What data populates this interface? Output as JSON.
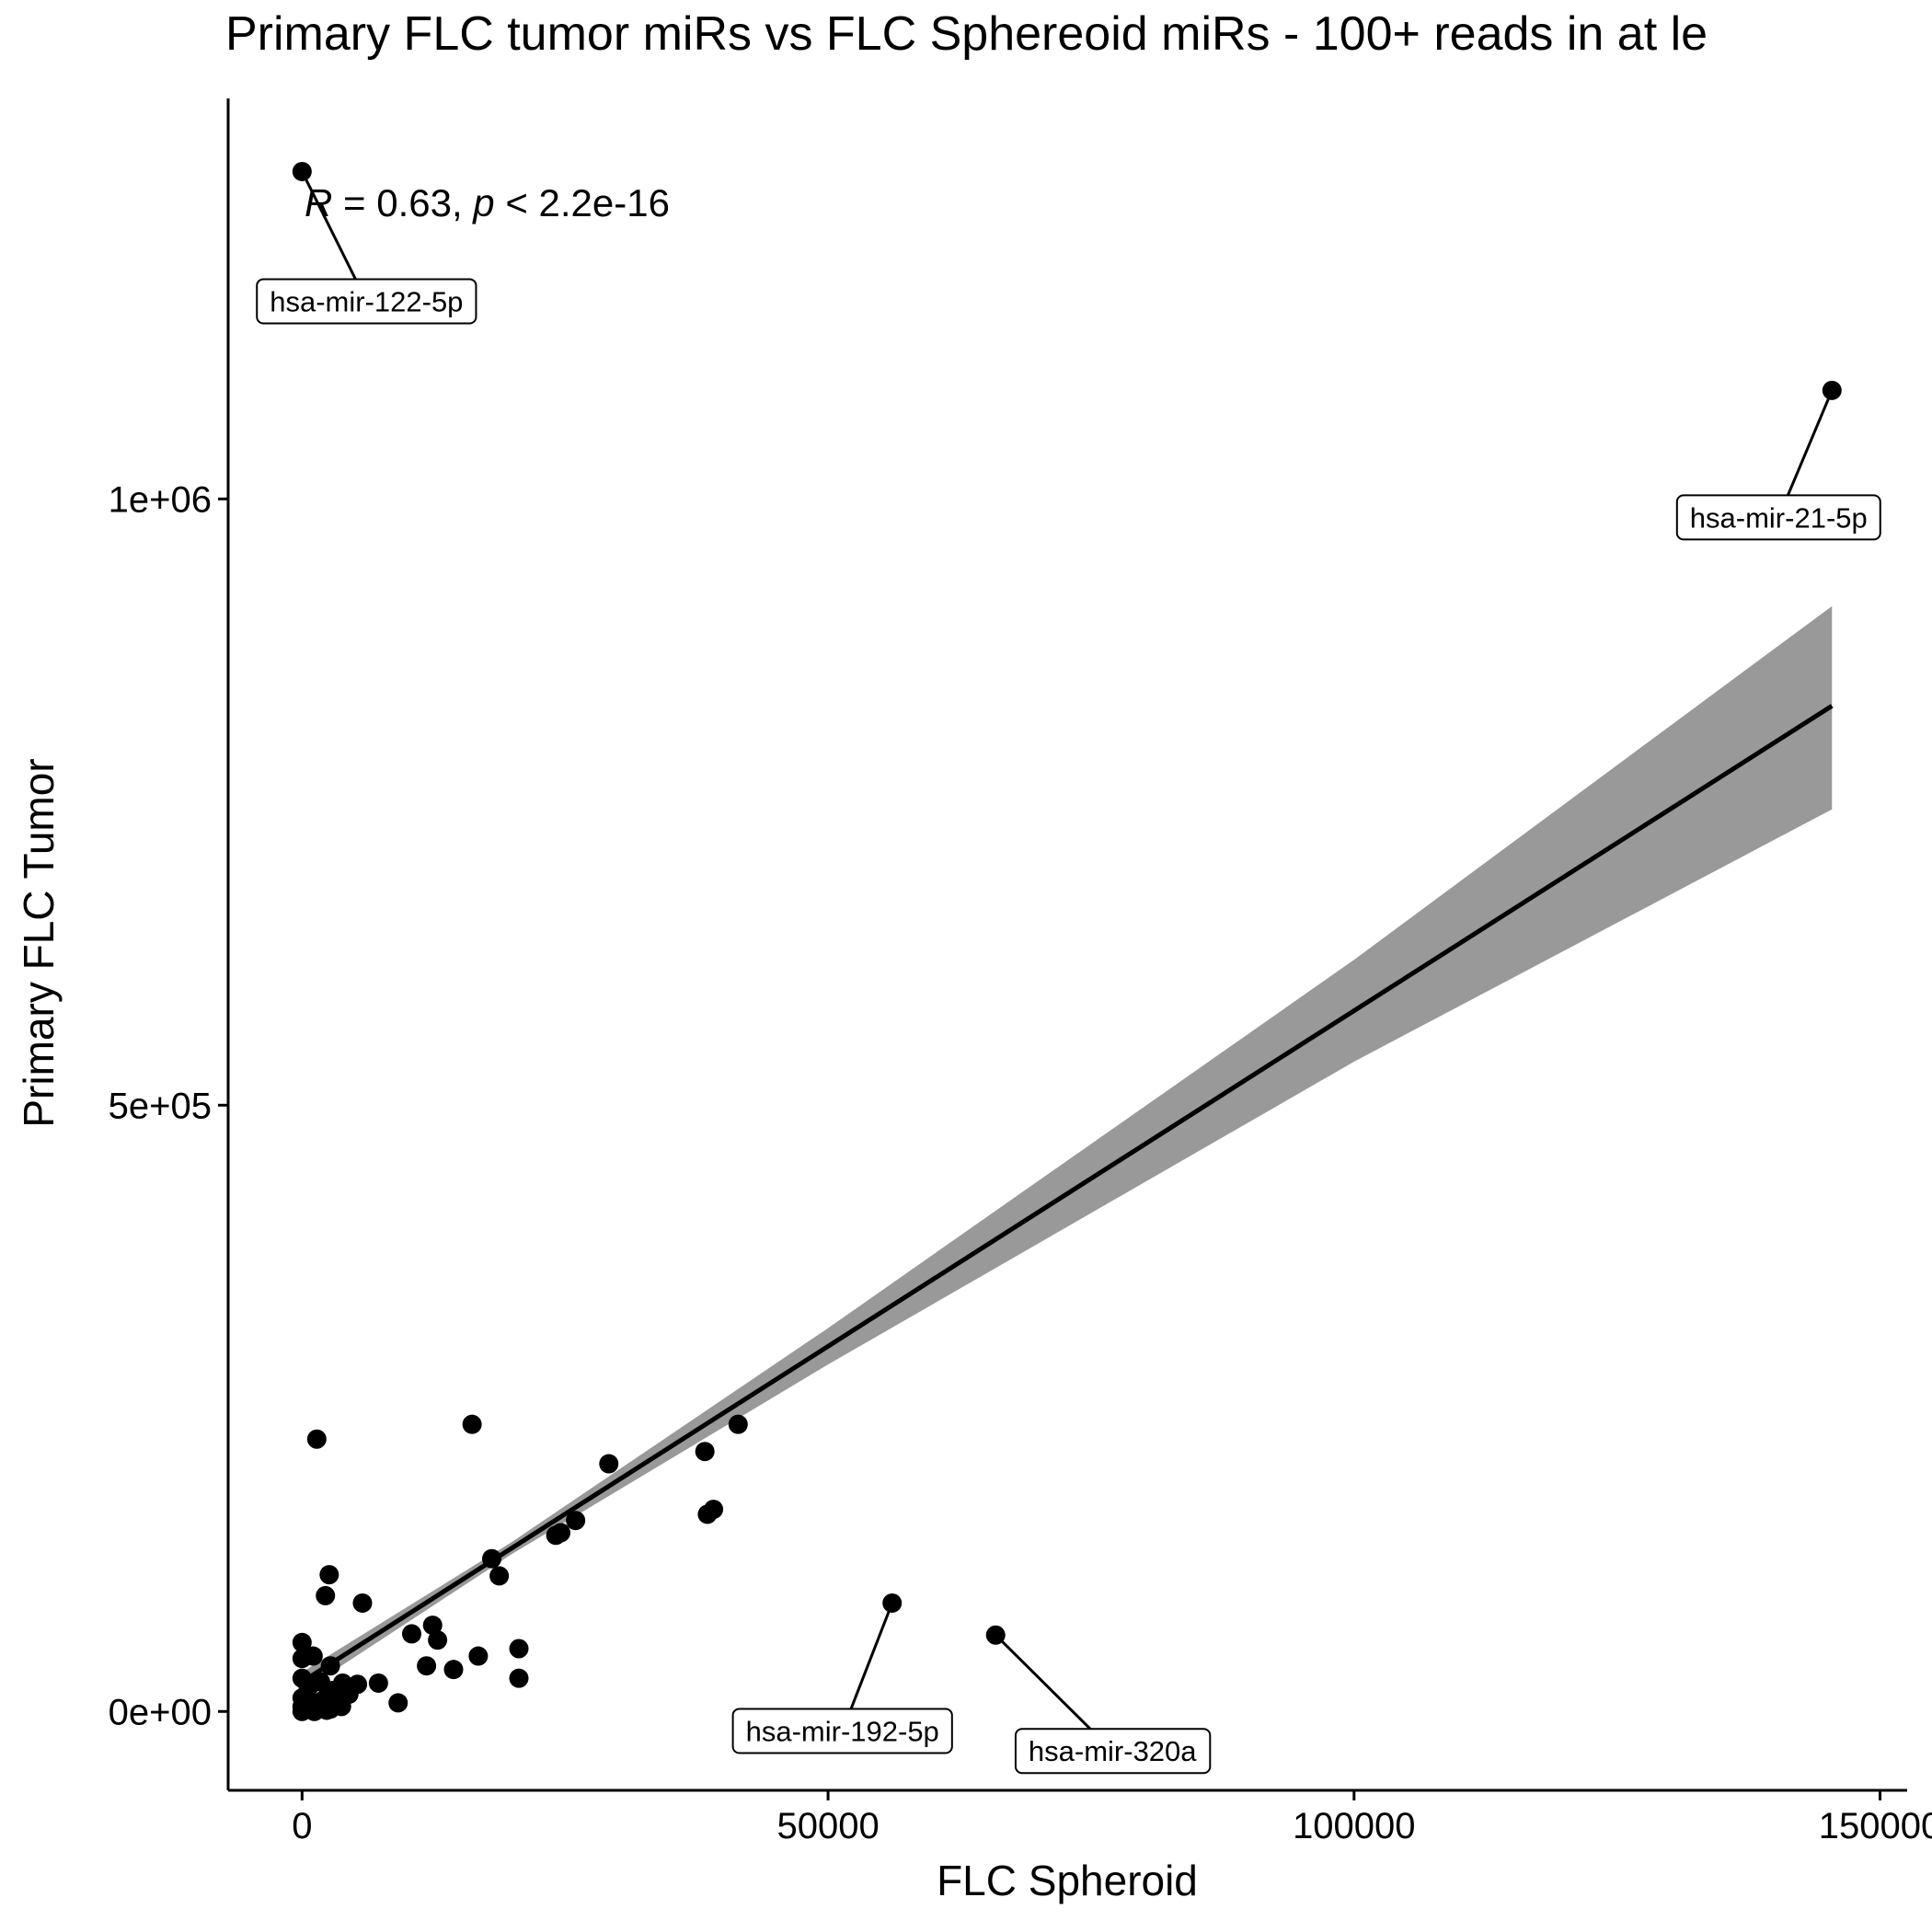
{
  "chart_data": {
    "type": "scatter",
    "title": "Primary FLC tumor miRs vs FLC Sphereoid miRs - 100+ reads in at le",
    "x_label": "FLC Spheroid",
    "y_label": "Primary FLC Tumor",
    "annotation_parts": [
      "R",
      " = 0.63, ",
      "p",
      " < 2.2e-16"
    ],
    "xlim": [
      -7026,
      152576
    ],
    "ylim": [
      -65040,
      1330285
    ],
    "xticks": [
      0,
      50000,
      100000,
      {
        "value": 150000,
        "label": "150000"
      }
    ],
    "yticks": [
      {
        "value": 0,
        "label": "0e+00"
      },
      {
        "value": 500000,
        "label": "5e+05"
      },
      {
        "value": 1000000,
        "label": "1e+06"
      }
    ],
    "color": "#000000",
    "x": [
      0,
      145430,
      56090,
      65930,
      41450,
      38290,
      16160,
      1400,
      29160,
      39110,
      38530,
      26000,
      24590,
      24120,
      18030,
      18740,
      2580,
      2220,
      5740,
      12410,
      10420,
      12880,
      20610,
      16750,
      11830,
      14400,
      20610,
      7260,
      9130,
      0,
      1050,
      0,
      2690,
      0,
      1760,
      3860,
      5270,
      590,
      2930,
      4450,
      0,
      1990,
      3510,
      0,
      1520,
      2690,
      0,
      1170,
      2340,
      3750,
      820
    ],
    "y": [
      1270000,
      1089500,
      89400,
      63000,
      236800,
      214400,
      236800,
      224600,
      204300,
      166700,
      162600,
      157500,
      147400,
      145300,
      126000,
      111800,
      112800,
      95500,
      89400,
      71100,
      64000,
      58900,
      51800,
      45700,
      37600,
      34600,
      27400,
      23400,
      7100,
      56900,
      45700,
      43700,
      37600,
      27400,
      24400,
      23400,
      22400,
      19300,
      17300,
      14200,
      11200,
      9100,
      7100,
      4100,
      3000,
      2000,
      0,
      0,
      1000,
      4100,
      6100
    ],
    "point_labels": [
      "hsa-mir-122-5p",
      "hsa-mir-21-5p",
      "hsa-mir-192-5p",
      "hsa-mir-320a",
      null,
      null,
      null,
      null,
      null,
      null,
      null,
      null,
      null,
      null,
      null,
      null,
      null,
      null,
      null,
      null,
      null,
      null,
      null,
      null,
      null,
      null,
      null,
      null,
      null,
      null,
      null,
      null,
      null,
      null,
      null,
      null,
      null,
      null,
      null,
      null,
      null,
      null,
      null,
      null,
      null,
      null,
      null,
      null,
      null,
      null,
      null
    ],
    "fit": {
      "x": [
        0,
        20000,
        50000,
        100000,
        145430
      ],
      "y": [
        24400,
        135100,
        301150,
        577900,
        829300
      ],
      "upper": [
        32400,
        140100,
        316150,
        619900,
        911600
      ],
      "lower": [
        16400,
        130100,
        286150,
        535900,
        744000
      ],
      "line_color": "#000000",
      "band_color": "#999999"
    }
  }
}
